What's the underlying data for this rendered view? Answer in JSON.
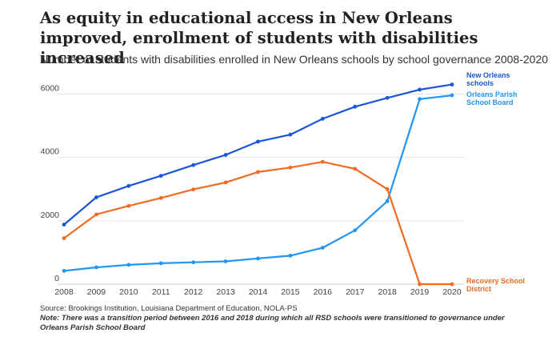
{
  "title": "As equity in educational access in New Orleans improved, enrollment of students with disabilities increased",
  "subtitle": "Number of students with disabilities enrolled in New Orleans schools by school governance 2008-2020",
  "source": "Source: Brookings Institution, Louisiana Department of Education, NOLA-PS",
  "note": "Note: There was a transition period between 2016 and 2018 during which all RSD schools were transitioned to governance under Orleans Parish School Board",
  "chart_data": {
    "type": "line",
    "title": "As equity in educational access in New Orleans improved, enrollment of students with disabilities increased",
    "subtitle": "Number of students with disabilities enrolled in New Orleans schools by school governance 2008-2020",
    "xlabel": "",
    "ylabel": "",
    "x": [
      "2008",
      "2009",
      "2010",
      "2011",
      "2012",
      "2013",
      "2014",
      "2015",
      "2016",
      "2017",
      "2018",
      "2019",
      "2020"
    ],
    "ylim": [
      0,
      6400
    ],
    "yticks": [
      0,
      2000,
      4000,
      6000
    ],
    "grid": true,
    "legend": "direct labels at right end of lines",
    "series": [
      {
        "name": "New Orleans schools",
        "label_lines": [
          "New Orleans",
          "schools"
        ],
        "color": "#1a56d6",
        "values": [
          1880,
          2740,
          3100,
          3420,
          3760,
          4080,
          4500,
          4720,
          5220,
          5600,
          5880,
          6140,
          6300
        ]
      },
      {
        "name": "Orleans Parish School Board",
        "label_lines": [
          "Orleans Parish",
          "School Board"
        ],
        "color": "#2196f3",
        "values": [
          420,
          530,
          610,
          660,
          690,
          720,
          810,
          900,
          1150,
          1700,
          2620,
          5840,
          5960
        ]
      },
      {
        "name": "Recovery School District",
        "label_lines": [
          "Recovery School",
          "District"
        ],
        "color": "#f26b21",
        "values": [
          1450,
          2200,
          2470,
          2720,
          2990,
          3210,
          3540,
          3680,
          3860,
          3640,
          3000,
          0,
          0
        ]
      }
    ]
  }
}
